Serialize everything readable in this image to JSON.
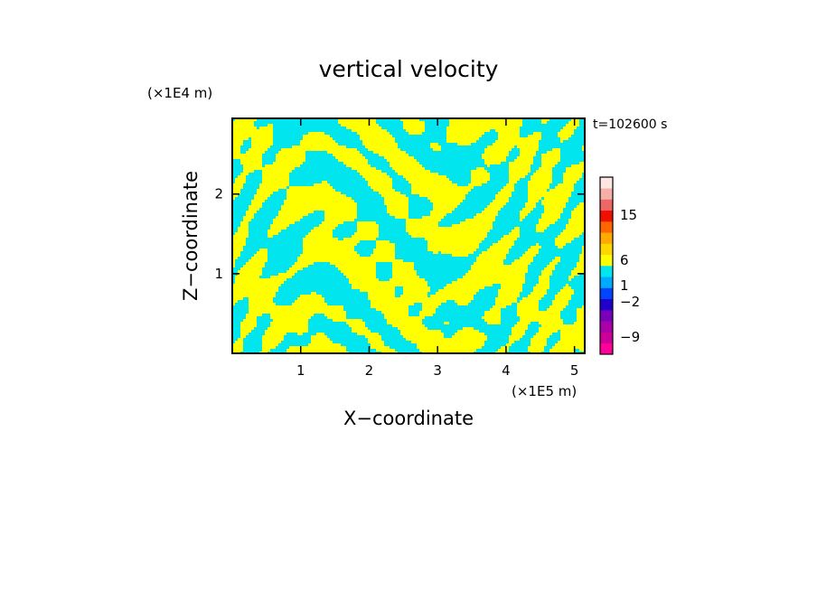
{
  "chart_data": {
    "type": "heatmap",
    "title": "vertical velocity",
    "xlabel": "X−coordinate",
    "ylabel": "Z−coordinate",
    "x_scale_label": "(×1E5 m)",
    "y_scale_label": "(×1E4 m)",
    "time_label": "t=102600 s",
    "xlim": [
      0,
      5.15
    ],
    "ylim": [
      0,
      2.95
    ],
    "x_ticks": [
      "1",
      "2",
      "3",
      "4",
      "5"
    ],
    "x_tick_values": [
      1,
      2,
      3,
      4,
      5
    ],
    "y_ticks": [
      "1",
      "2"
    ],
    "y_tick_values": [
      1,
      2
    ],
    "field_colors": {
      "positive": "#ffff00",
      "negative": "#00e5ee"
    },
    "colorbar": {
      "bands": [
        {
          "color": "#ff0099"
        },
        {
          "color": "#cc0099"
        },
        {
          "color": "#aa00aa"
        },
        {
          "color": "#7700bb"
        },
        {
          "color": "#2200cc"
        },
        {
          "color": "#0044ff"
        },
        {
          "color": "#00aaff"
        },
        {
          "color": "#00e5ee"
        },
        {
          "color": "#ffff00"
        },
        {
          "color": "#ffd700"
        },
        {
          "color": "#ffaa00"
        },
        {
          "color": "#ff6600"
        },
        {
          "color": "#ee1100"
        },
        {
          "color": "#ee6666"
        },
        {
          "color": "#f4b0a8"
        },
        {
          "color": "#fde6e2"
        }
      ],
      "tick_labels": [
        "−9",
        "−2",
        "1",
        "6",
        "15"
      ]
    }
  }
}
